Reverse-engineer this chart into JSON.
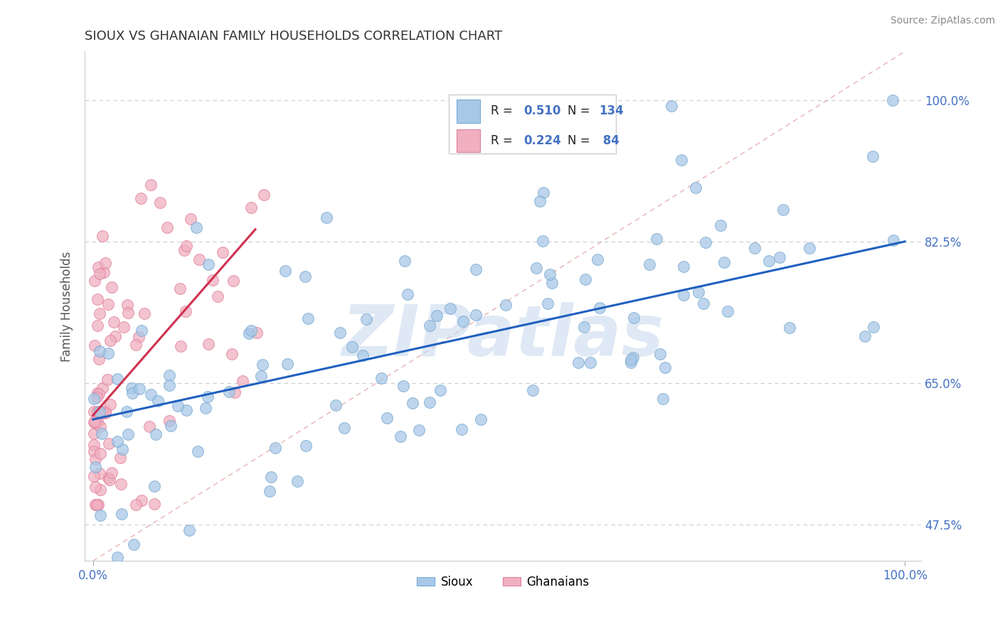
{
  "title": "SIOUX VS GHANAIAN FAMILY HOUSEHOLDS CORRELATION CHART",
  "source_text": "Source: ZipAtlas.com",
  "ylabel": "Family Households",
  "xlim": [
    0.0,
    100.0
  ],
  "ylim": [
    43.0,
    106.0
  ],
  "yticks": [
    47.5,
    65.0,
    82.5,
    100.0
  ],
  "xtick_labels": [
    "0.0%",
    "100.0%"
  ],
  "ytick_labels": [
    "47.5%",
    "65.0%",
    "82.5%",
    "100.0%"
  ],
  "grid_color": "#cccccc",
  "background_color": "#ffffff",
  "title_color": "#333333",
  "axis_label_color": "#555555",
  "tick_label_color": "#4472c4",
  "sioux_color": "#a8c8e8",
  "ghanaian_color": "#f0b0c0",
  "sioux_edge_color": "#7aaad0",
  "ghanaian_edge_color": "#e080a0",
  "sioux_line_color": "#2060c0",
  "ghanaian_line_color": "#d03050",
  "diag_line_color": "#e09090",
  "sioux_R": 0.51,
  "sioux_N": 134,
  "ghanaian_R": 0.224,
  "ghanaian_N": 84,
  "watermark": "ZIPatlas",
  "sioux_line_x0": 0,
  "sioux_line_x1": 100,
  "sioux_line_y0": 60.5,
  "sioux_line_y1": 82.5,
  "ghanaian_line_x0": 0,
  "ghanaian_line_x1": 20,
  "ghanaian_line_y0": 61.0,
  "ghanaian_line_y1": 84.0
}
